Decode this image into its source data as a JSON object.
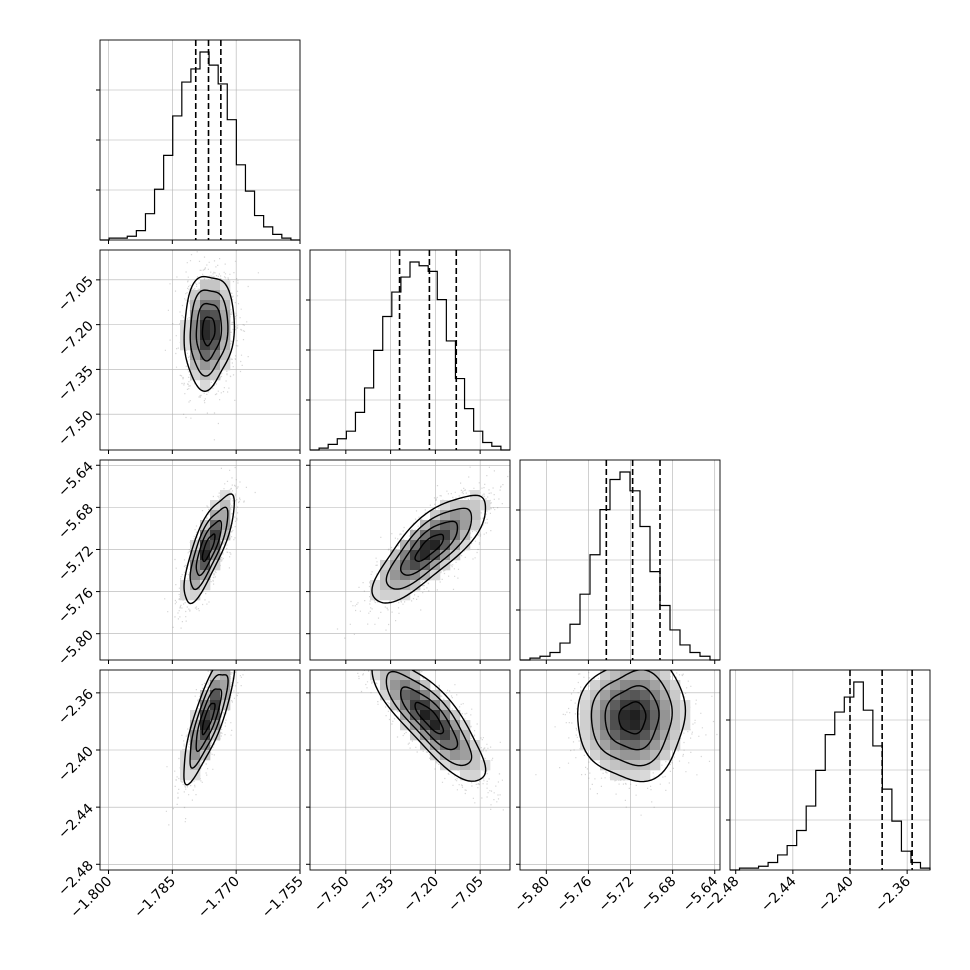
{
  "chart_data": {
    "type": "corner",
    "parameters": [
      {
        "range": [
          -1.802,
          -1.755
        ],
        "median": -1.7765,
        "q16": -1.7795,
        "q84": -1.7736,
        "ticks": [
          -1.8,
          -1.785,
          -1.77,
          -1.755
        ],
        "tick_labels": [
          "−1.800",
          "−1.785",
          "−1.770",
          "−1.755"
        ]
      },
      {
        "range": [
          -7.62,
          -6.95
        ],
        "median": -7.22,
        "q16": -7.32,
        "q84": -7.13,
        "ticks": [
          -7.5,
          -7.35,
          -7.2,
          -7.05
        ],
        "tick_labels": [
          "−7.50",
          "−7.35",
          "−7.20",
          "−7.05"
        ]
      },
      {
        "range": [
          -5.825,
          -5.635
        ],
        "median": -5.718,
        "q16": -5.743,
        "q84": -5.692,
        "ticks": [
          -5.8,
          -5.76,
          -5.72,
          -5.68,
          -5.64
        ],
        "tick_labels": [
          "−5.80",
          "−5.76",
          "−5.72",
          "−5.68",
          "−5.64"
        ]
      },
      {
        "range": [
          -2.484,
          -2.344
        ],
        "median": -2.3775,
        "q16": -2.4,
        "q84": -2.3565,
        "ticks": [
          -2.48,
          -2.44,
          -2.4,
          -2.36
        ],
        "tick_labels": [
          "−2.48",
          "−2.44",
          "−2.40",
          "−2.36"
        ]
      }
    ],
    "histograms": [
      [
        0,
        1,
        1,
        2,
        5,
        14,
        27,
        45,
        66,
        84,
        91,
        100,
        93,
        83,
        64,
        40,
        26,
        13,
        7,
        3,
        1,
        0
      ],
      [
        0,
        1,
        3,
        6,
        10,
        20,
        33,
        53,
        71,
        84,
        92,
        100,
        98,
        95,
        80,
        58,
        38,
        22,
        10,
        4,
        2,
        0
      ],
      [
        0,
        1,
        2,
        4,
        9,
        19,
        35,
        56,
        80,
        96,
        100,
        90,
        71,
        47,
        29,
        16,
        8,
        4,
        2,
        0
      ],
      [
        0,
        1,
        1,
        2,
        4,
        8,
        13,
        21,
        34,
        53,
        72,
        84,
        92,
        100,
        85,
        66,
        43,
        26,
        10,
        4,
        1
      ]
    ],
    "correlations": [
      [
        1,
        0.1,
        0.78,
        0.8
      ],
      [
        0.1,
        1,
        0.78,
        -0.82
      ],
      [
        0.78,
        0.78,
        1,
        0.05
      ],
      [
        0.8,
        -0.82,
        0.05,
        1
      ]
    ],
    "labels": [],
    "colors": {
      "contour": "#000000",
      "points": "#8a8a8a",
      "grid": "#b0b0b0"
    }
  }
}
